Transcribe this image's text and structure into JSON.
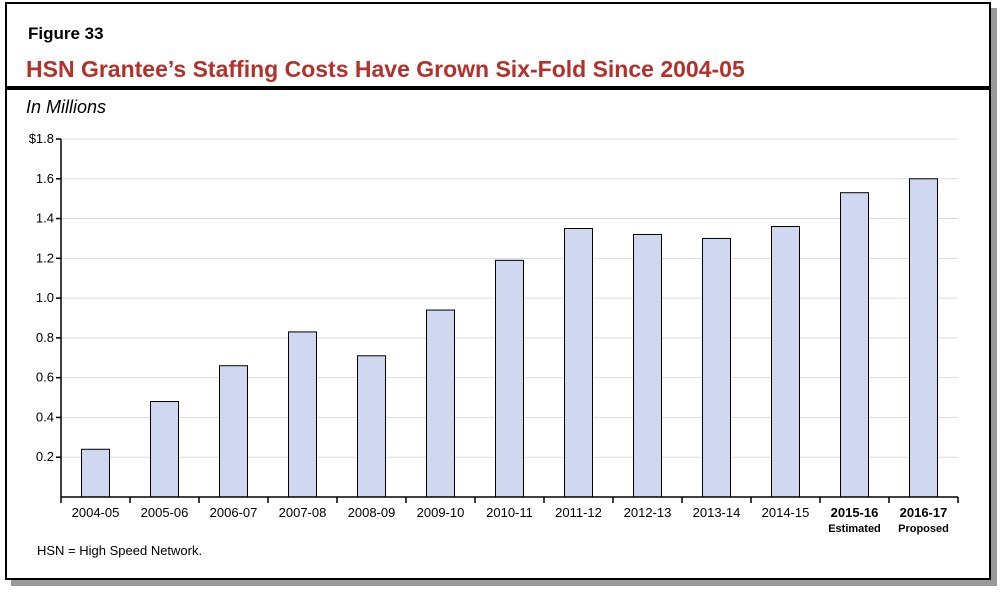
{
  "figure_label": "Figure 33",
  "title": "HSN Grantee’s Staffing Costs Have Grown Six-Fold Since 2004-05",
  "unit_label": "In Millions",
  "note": "HSN = High Speed Network.",
  "colors": {
    "title": "#b5302a",
    "bar": "#cfd8f0",
    "grid": "#dddddd"
  },
  "chart_data": {
    "type": "bar",
    "categories": [
      "2004-05",
      "2005-06",
      "2006-07",
      "2007-08",
      "2008-09",
      "2009-10",
      "2010-11",
      "2011-12",
      "2012-13",
      "2013-14",
      "2014-15",
      "2015-16",
      "2016-17"
    ],
    "category_sublabels": [
      "",
      "",
      "",
      "",
      "",
      "",
      "",
      "",
      "",
      "",
      "",
      "Estimated",
      "Proposed"
    ],
    "values": [
      0.24,
      0.48,
      0.66,
      0.83,
      0.71,
      0.94,
      1.19,
      1.35,
      1.32,
      1.3,
      1.36,
      1.53,
      1.6
    ],
    "ylim": [
      0,
      1.8
    ],
    "yticks": [
      0.2,
      0.4,
      0.6,
      0.8,
      1.0,
      1.2,
      1.4,
      1.6,
      1.8
    ],
    "ytick_labels": [
      "0.2",
      "0.4",
      "0.6",
      "0.8",
      "1.0",
      "1.2",
      "1.4",
      "1.6",
      "$1.8"
    ],
    "grid": true
  }
}
